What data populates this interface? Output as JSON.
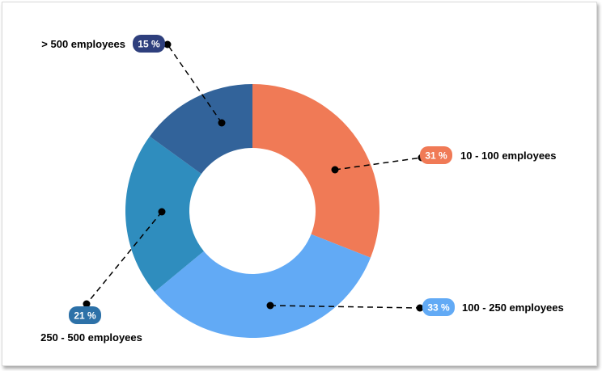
{
  "chart_data": {
    "type": "pie",
    "variant": "donut",
    "title": "",
    "start_angle_deg": 0,
    "direction": "clockwise",
    "legend": "none",
    "slices": [
      {
        "label": "10 - 100 employees",
        "value": 31,
        "value_label": "31 %",
        "color": "#F07A56"
      },
      {
        "label": "100 - 250 employees",
        "value": 33,
        "value_label": "33 %",
        "color": "#62AAF5"
      },
      {
        "label": "250 - 500 employees",
        "value": 21,
        "value_label": "21 %",
        "color": "#2F8DBE"
      },
      {
        "label": "> 500 employees",
        "value": 15,
        "value_label": "15 %",
        "color": "#32639A"
      }
    ]
  }
}
